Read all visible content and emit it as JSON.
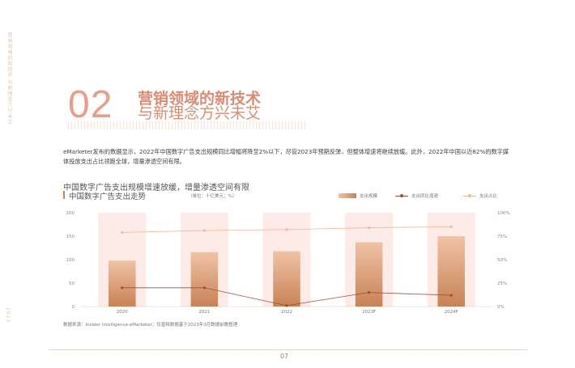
{
  "side_text": "营销领域的新技术 与新理念方兴未艾",
  "side_bottom": "2023",
  "section_number": "02",
  "headline_line1": "营销领域的新技术",
  "headline_line2": "与新理念方兴未艾",
  "intro": "eMarketer发布的数据显示，2022年中国数字广告支出规模同比增幅将降至2%以下，尽管2023年预期反弹，但整体增速将继续放缓。此外，2022年中国以近82%的数字媒体投放支出占比领跑全球，增量渗透空间有限。",
  "chart_heading": "中国数字广告支出规模增速放缓，增量渗透空间有限",
  "chart_title": "中国数字广告支出走势",
  "chart_unit": "（单位：十亿美元；%）",
  "legend": {
    "spend": "支出规模",
    "growth": "支出同比增速",
    "share": "支出占比"
  },
  "source": "数据来源：Insider Intelligence-eMarketer；仅普释数据基于2023年3月数据前瞻整理",
  "page_number": "07",
  "colors": {
    "accent": "#d98c72",
    "bar_top": "#efc3a6",
    "bar_bottom": "#c88255",
    "bg_band": "#fcebe6",
    "growth_line": "#9a4e3a",
    "share_line": "#f2b79a"
  },
  "chart_data": {
    "type": "bar",
    "categories": [
      "2020",
      "2021",
      "2022",
      "2023F",
      "2024F"
    ],
    "y_left_ticks": [
      "0",
      "50",
      "100",
      "150",
      "200"
    ],
    "y_right_ticks": [
      "0%",
      "25%",
      "50%",
      "75%",
      "100%"
    ],
    "ylim_left": [
      0,
      200
    ],
    "ylim_right": [
      0,
      1
    ],
    "series": [
      {
        "name": "支出规模",
        "kind": "bar",
        "values": [
          98,
          116,
          118,
          137,
          150
        ]
      },
      {
        "name": "支出同比增速",
        "kind": "line",
        "values": [
          0.2,
          0.2,
          0.01,
          0.15,
          0.12
        ]
      },
      {
        "name": "支出占比",
        "kind": "line",
        "values": [
          0.79,
          0.81,
          0.82,
          0.84,
          0.85
        ]
      }
    ]
  }
}
